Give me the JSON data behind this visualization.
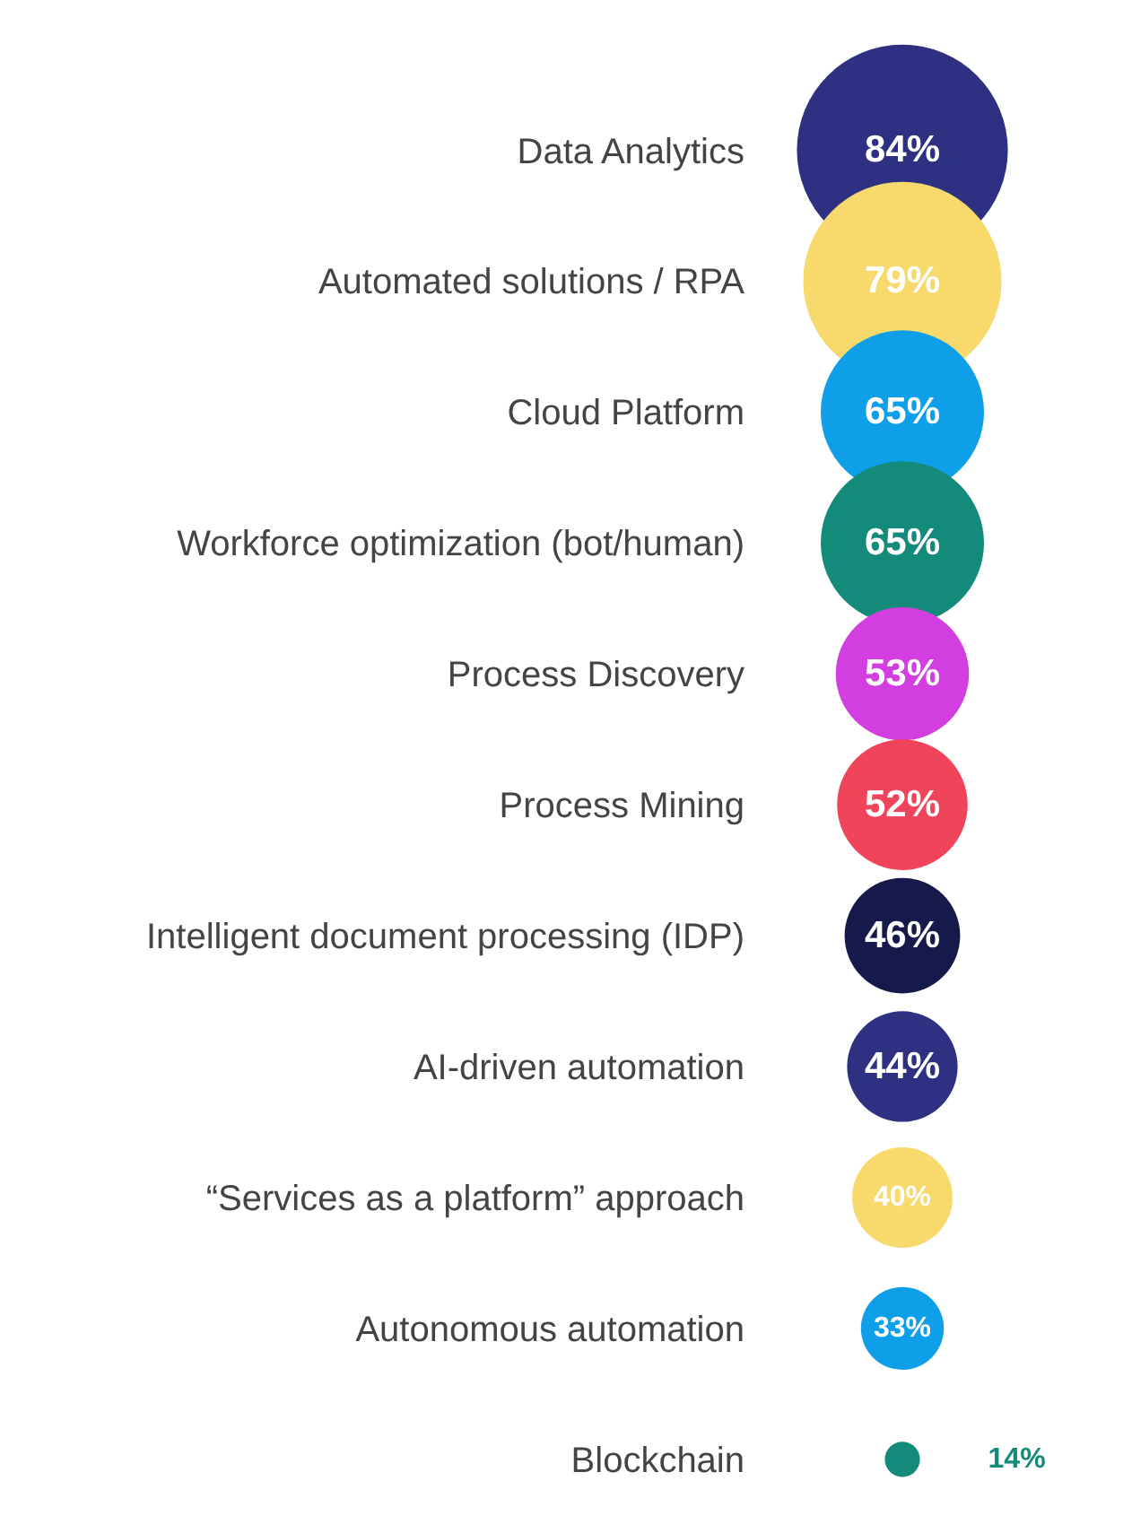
{
  "chart_data": {
    "type": "other",
    "categories": [
      "Data Analytics",
      "Automated solutions / RPA",
      "Cloud Platform",
      "Workforce optimization (bot/human)",
      "Process Discovery",
      "Process Mining",
      "Intelligent document processing (IDP)",
      "AI-driven automation",
      "“Services as a platform” approach",
      "Autonomous automation",
      "Blockchain"
    ],
    "values": [
      84,
      79,
      65,
      65,
      53,
      52,
      46,
      44,
      40,
      33,
      14
    ],
    "value_labels": [
      "84%",
      "79%",
      "65%",
      "65%",
      "53%",
      "52%",
      "46%",
      "44%",
      "40%",
      "33%",
      "14%"
    ],
    "colors": [
      "#2e3182",
      "#f7da6b",
      "#0f9fe8",
      "#138a7a",
      "#d33ee0",
      "#f0445a",
      "#161a4a",
      "#2e3182",
      "#f7da6b",
      "#0f9fe8",
      "#138a7a"
    ]
  }
}
